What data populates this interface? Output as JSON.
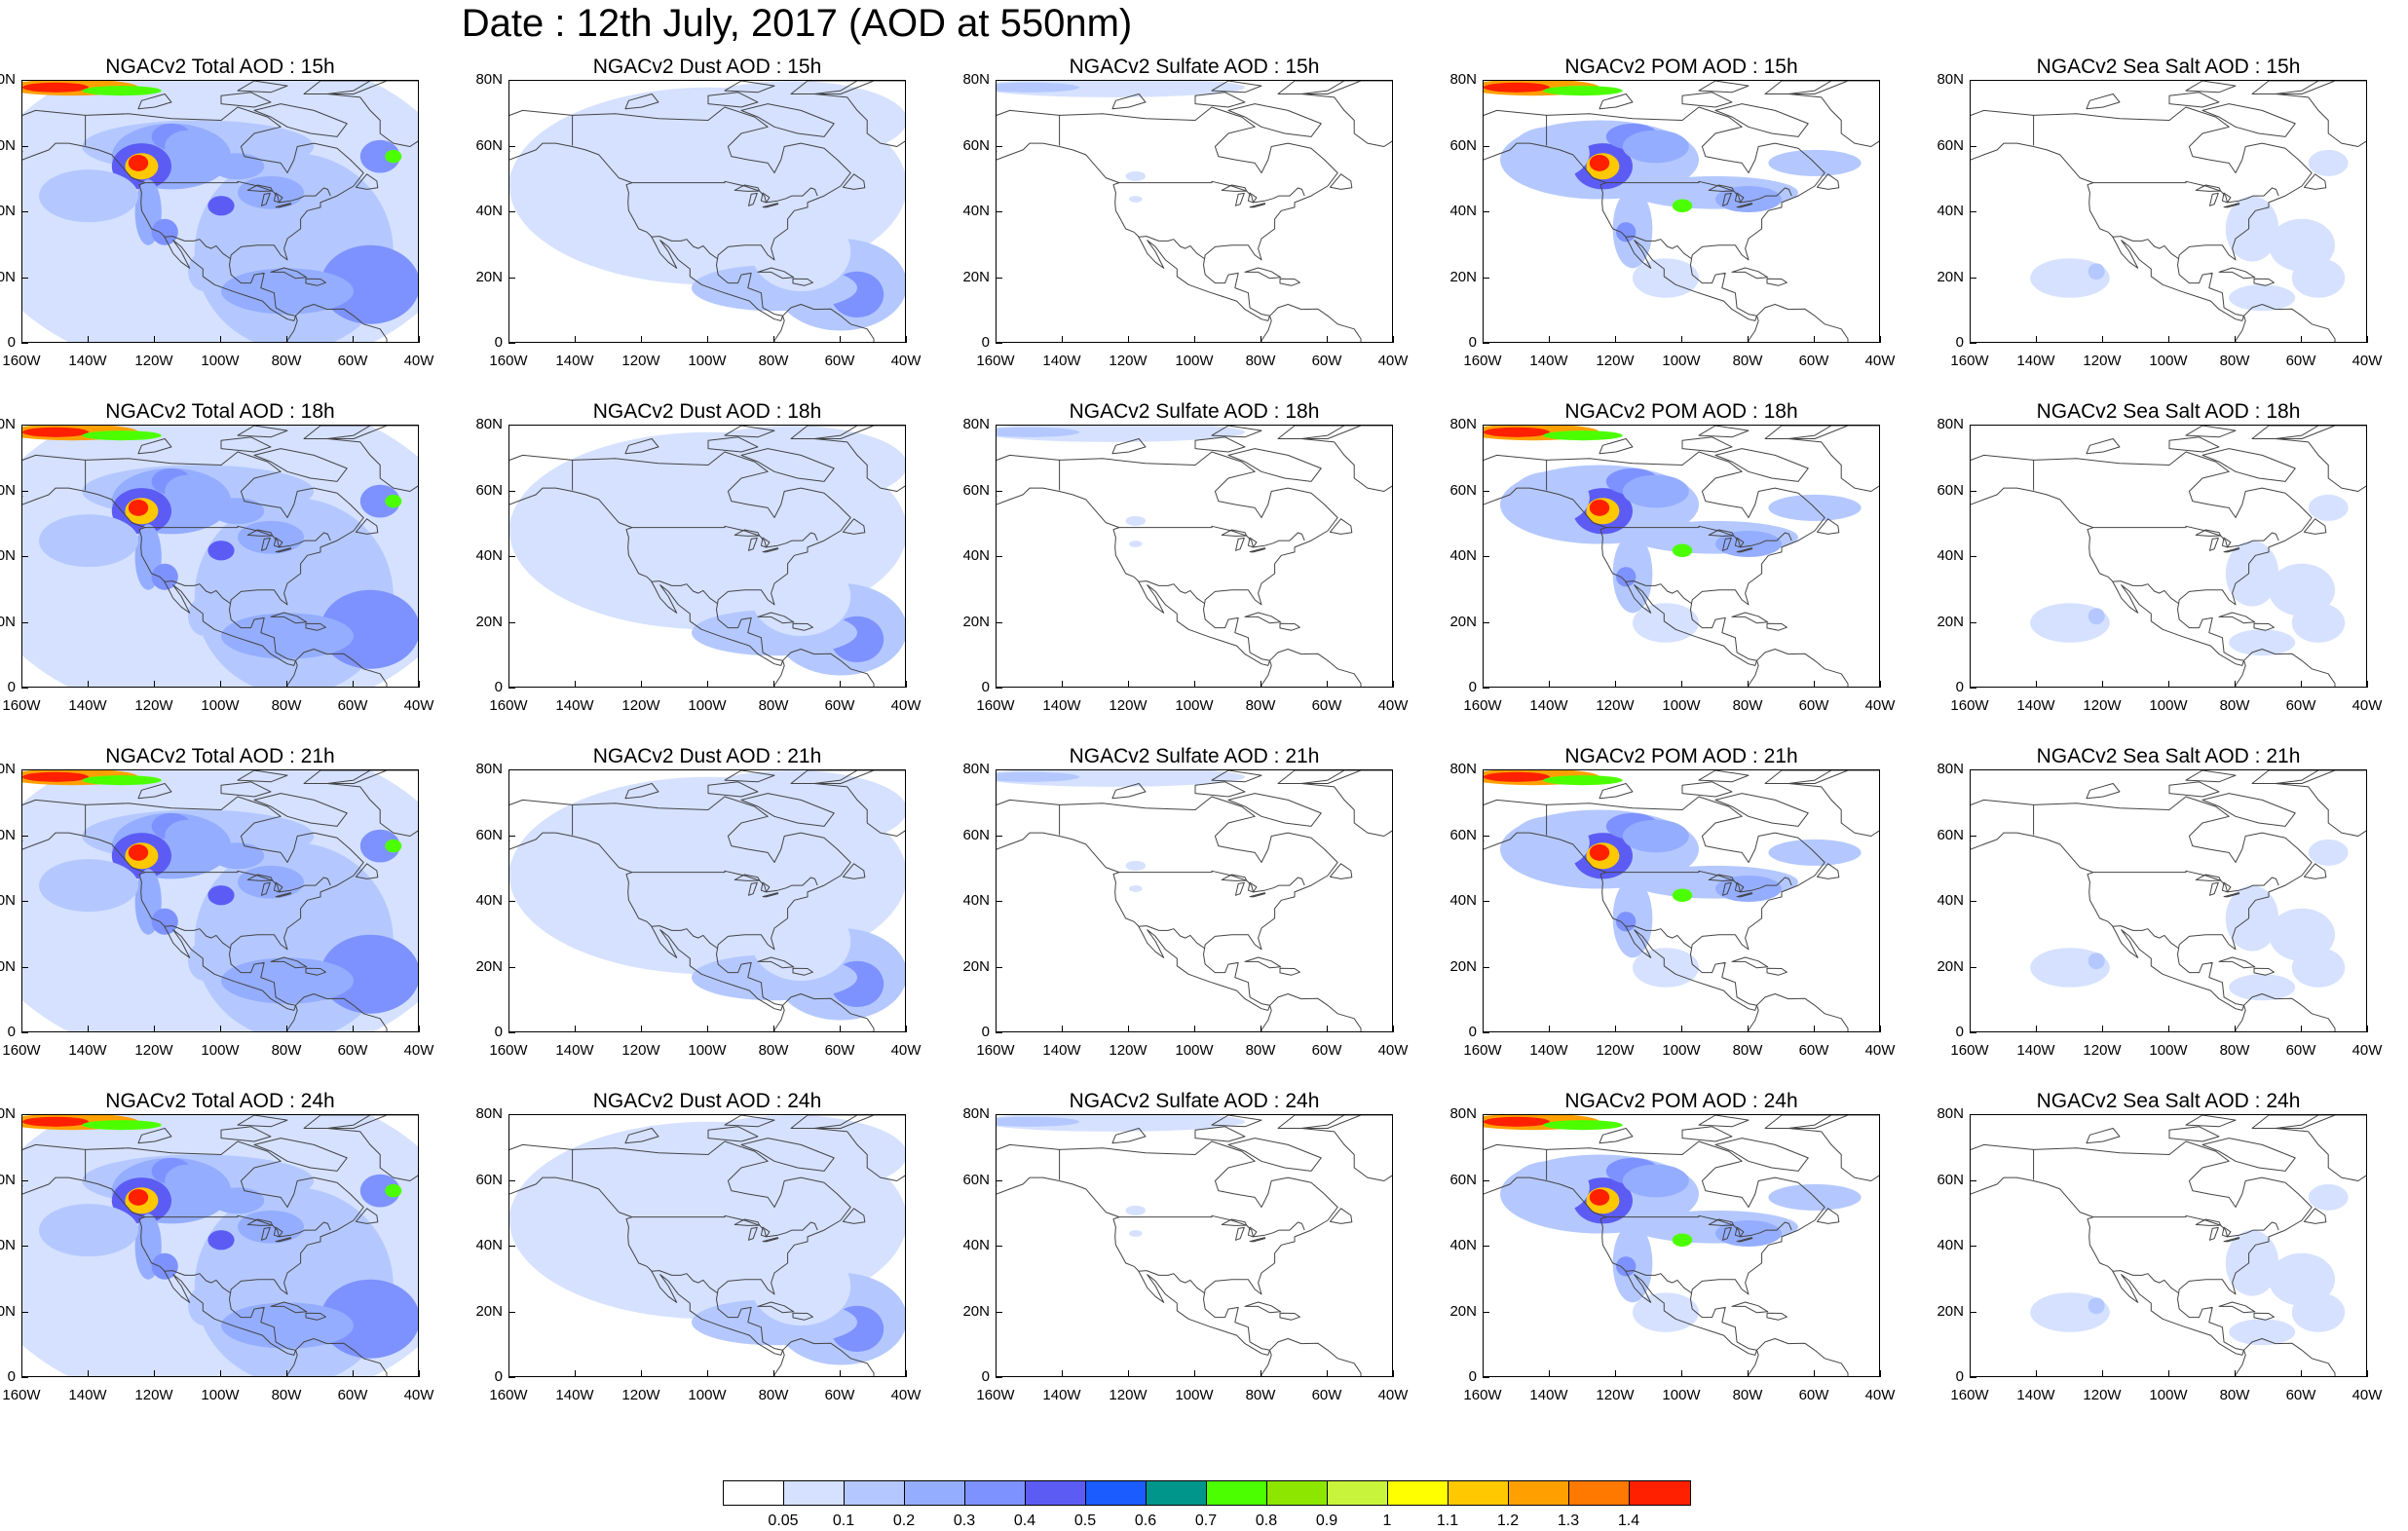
{
  "title": "Date : 12th July, 2017 (AOD at 550nm)",
  "panels": [
    {
      "title": "NGACv2 Total AOD : 15h",
      "type": "total"
    },
    {
      "title": "NGACv2 Dust AOD : 15h",
      "type": "dust"
    },
    {
      "title": "NGACv2 Sulfate AOD : 15h",
      "type": "sulfate"
    },
    {
      "title": "NGACv2 POM AOD : 15h",
      "type": "pom"
    },
    {
      "title": "NGACv2 Sea Salt AOD : 15h",
      "type": "seasalt"
    },
    {
      "title": "NGACv2 Total AOD : 18h",
      "type": "total"
    },
    {
      "title": "NGACv2 Dust AOD : 18h",
      "type": "dust"
    },
    {
      "title": "NGACv2 Sulfate AOD : 18h",
      "type": "sulfate"
    },
    {
      "title": "NGACv2 POM AOD : 18h",
      "type": "pom"
    },
    {
      "title": "NGACv2 Sea Salt AOD : 18h",
      "type": "seasalt"
    },
    {
      "title": "NGACv2 Total AOD : 21h",
      "type": "total"
    },
    {
      "title": "NGACv2 Dust AOD : 21h",
      "type": "dust"
    },
    {
      "title": "NGACv2 Sulfate AOD : 21h",
      "type": "sulfate"
    },
    {
      "title": "NGACv2 POM AOD : 21h",
      "type": "pom"
    },
    {
      "title": "NGACv2 Sea Salt AOD : 21h",
      "type": "seasalt"
    },
    {
      "title": "NGACv2 Total AOD : 24h",
      "type": "total"
    },
    {
      "title": "NGACv2 Dust AOD : 24h",
      "type": "dust"
    },
    {
      "title": "NGACv2 Sulfate AOD : 24h",
      "type": "sulfate"
    },
    {
      "title": "NGACv2 POM AOD : 24h",
      "type": "pom"
    },
    {
      "title": "NGACv2 Sea Salt  AOD : 24h",
      "type": "seasalt"
    }
  ],
  "axes": {
    "x_labels": [
      "160W",
      "140W",
      "120W",
      "100W",
      "80W",
      "60W",
      "40W"
    ],
    "y_labels": [
      "80N",
      "60N",
      "40N",
      "20N",
      "0"
    ],
    "lon_range": [
      -160,
      -40
    ],
    "lat_range": [
      0,
      80
    ]
  },
  "colorbar": {
    "colors": [
      "#ffffff",
      "#d5e1ff",
      "#b4c8ff",
      "#94adff",
      "#7d92ff",
      "#5c5cf5",
      "#1a5cff",
      "#00968c",
      "#4cff00",
      "#8ce600",
      "#c8f53c",
      "#ffff00",
      "#ffc800",
      "#ffa000",
      "#ff7800",
      "#ff2000"
    ],
    "labels": [
      "0.05",
      "0.1",
      "0.2",
      "0.3",
      "0.4",
      "0.5",
      "0.6",
      "0.7",
      "0.8",
      "0.9",
      "1",
      "1.1",
      "1.2",
      "1.3",
      "1.4"
    ]
  }
}
